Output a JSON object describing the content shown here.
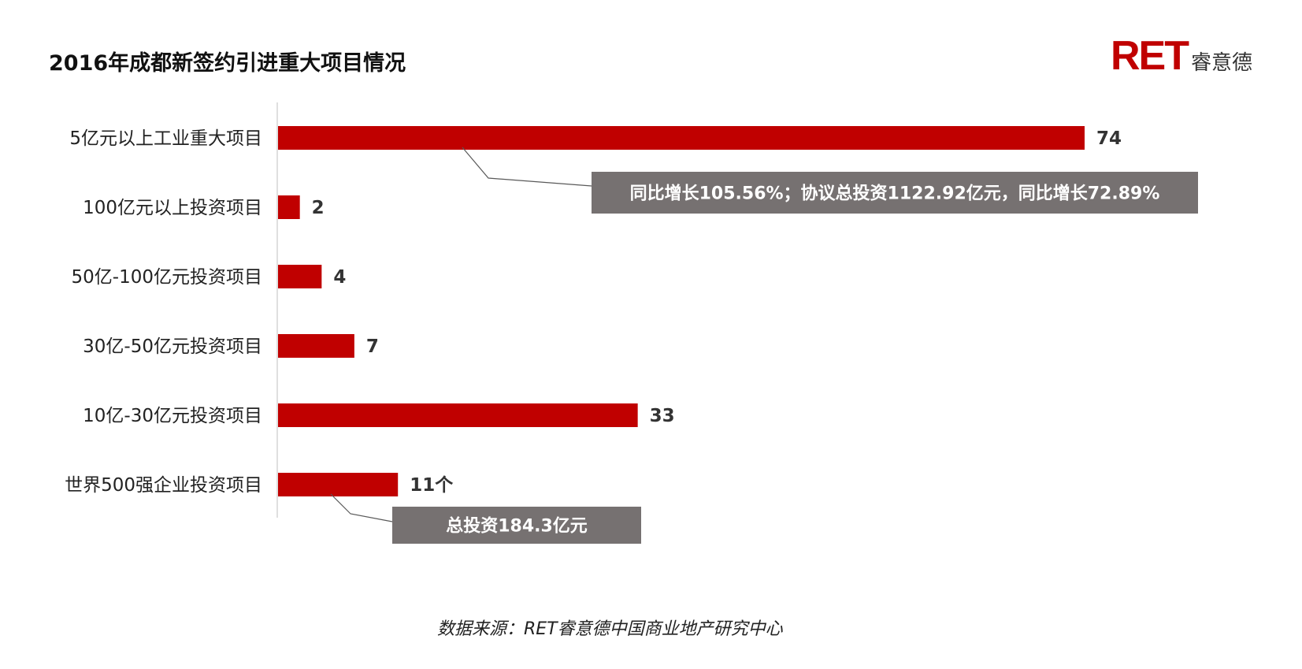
{
  "title": "2016年成都新签约引进重大项目情况",
  "logo": {
    "mark": "RET",
    "text": "睿意德"
  },
  "source": "数据来源：RET睿意德中国商业地产研究中心",
  "colors": {
    "bar": "#c00000",
    "callout_bg": "#767171",
    "callout_text": "#ffffff",
    "axis": "#bfbfbf"
  },
  "chart_data": {
    "type": "bar",
    "orientation": "horizontal",
    "categories": [
      "5亿元以上工业重大项目",
      "100亿元以上投资项目",
      "50亿-100亿元投资项目",
      "30亿-50亿元投资项目",
      "10亿-30亿元投资项目",
      "世界500强企业投资项目"
    ],
    "values": [
      74,
      2,
      4,
      7,
      33,
      11
    ],
    "data_labels": [
      "74",
      "2",
      "4",
      "7",
      "33",
      "11个"
    ],
    "xlim": [
      0,
      74
    ],
    "grid": false,
    "legend": "none",
    "annotations": [
      {
        "category_index": 0,
        "text": "同比增长105.56%；协议总投资1122.92亿元，同比增长72.89%"
      },
      {
        "category_index": 5,
        "text": "总投资184.3亿元"
      }
    ]
  }
}
